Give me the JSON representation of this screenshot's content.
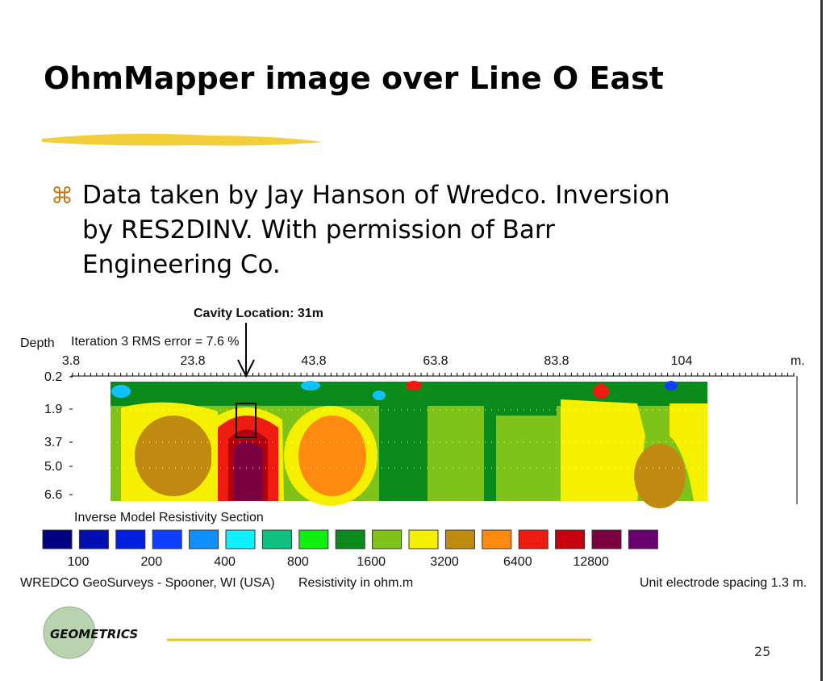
{
  "header": {
    "title": "OhmMapper image over Line O East"
  },
  "bullet": {
    "lines": [
      "Data taken by Jay Hanson of Wredco.  Inversion",
      "by RES2DINV.  With permission of Barr",
      "Engineering Co."
    ]
  },
  "figure": {
    "callout": "Cavity Location: 31m",
    "depth_label": "Depth",
    "iteration": "Iteration 3 RMS error = 7.6 %",
    "x_labels": [
      "3.8",
      "23.8",
      "43.8",
      "63.8",
      "83.8",
      "104"
    ],
    "x_unit": "m.",
    "depth_values": [
      "0.2",
      "1.9",
      "3.7",
      "5.0",
      "6.6"
    ],
    "section_title": "Inverse Model Resistivity Section",
    "scale_labels": [
      "100",
      "200",
      "400",
      "800",
      "1600",
      "3200",
      "6400",
      "12800"
    ],
    "credit": "WREDCO GeoSurveys - Spooner, WI (USA)",
    "scale_caption": "Resistivity in ohm.m",
    "spacing_note": "Unit electrode spacing 1.3 m."
  },
  "footer": {
    "logo": "GEOMETRICS",
    "page_number": "25"
  }
}
